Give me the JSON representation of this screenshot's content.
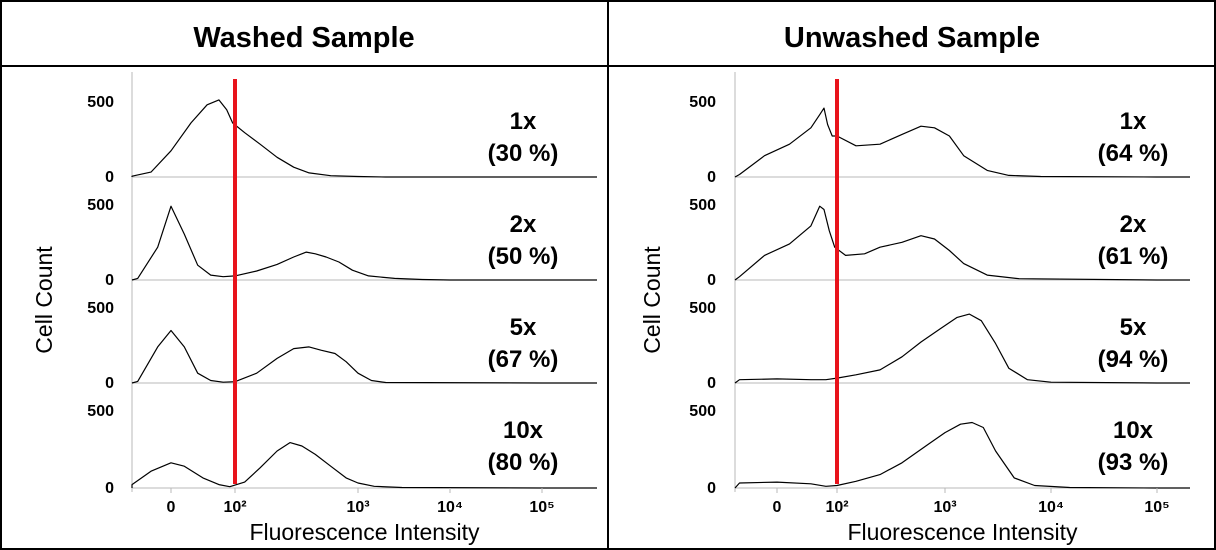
{
  "figure": {
    "colors": {
      "gate_line": "#e8131b",
      "curve": "#000000",
      "axis": "#b8b8b8",
      "border": "#000000"
    }
  },
  "chart_data": [
    {
      "type": "area",
      "title": "Washed Sample",
      "xlabel": "Fluorescence Intensity",
      "ylabel": "Cell Count",
      "x_scale": "biexponential",
      "x_ticks": [
        "0",
        "10²",
        "10³",
        "10⁴",
        "10⁵"
      ],
      "y_ticks": [
        "0",
        "500"
      ],
      "ylim": [
        0,
        500
      ],
      "gate": 100,
      "gate_label": "10²",
      "panels": [
        {
          "label": "1x",
          "percent": "(30 %)",
          "points": [
            [
              -60,
              0
            ],
            [
              -30,
              5
            ],
            [
              -15,
              30
            ],
            [
              0,
              160
            ],
            [
              15,
              330
            ],
            [
              30,
              440
            ],
            [
              50,
              470
            ],
            [
              70,
              410
            ],
            [
              90,
              330
            ],
            [
              120,
              270
            ],
            [
              160,
              200
            ],
            [
              220,
              120
            ],
            [
              300,
              60
            ],
            [
              400,
              25
            ],
            [
              600,
              8
            ],
            [
              1000,
              3
            ],
            [
              2000,
              0
            ],
            [
              100000,
              0
            ]
          ]
        },
        {
          "label": "2x",
          "percent": "(50 %)",
          "points": [
            [
              -60,
              0
            ],
            [
              -25,
              10
            ],
            [
              -10,
              200
            ],
            [
              0,
              450
            ],
            [
              10,
              280
            ],
            [
              20,
              90
            ],
            [
              35,
              30
            ],
            [
              60,
              20
            ],
            [
              100,
              25
            ],
            [
              150,
              55
            ],
            [
              220,
              95
            ],
            [
              300,
              140
            ],
            [
              380,
              170
            ],
            [
              450,
              160
            ],
            [
              550,
              140
            ],
            [
              700,
              110
            ],
            [
              900,
              60
            ],
            [
              1300,
              25
            ],
            [
              2500,
              10
            ],
            [
              5000,
              3
            ],
            [
              10000,
              0
            ],
            [
              100000,
              0
            ]
          ]
        },
        {
          "label": "5x",
          "percent": "(67 %)",
          "points": [
            [
              -60,
              0
            ],
            [
              -25,
              10
            ],
            [
              -10,
              220
            ],
            [
              0,
              320
            ],
            [
              10,
              220
            ],
            [
              20,
              60
            ],
            [
              35,
              15
            ],
            [
              60,
              5
            ],
            [
              100,
              8
            ],
            [
              150,
              60
            ],
            [
              220,
              150
            ],
            [
              300,
              210
            ],
            [
              400,
              220
            ],
            [
              500,
              200
            ],
            [
              650,
              180
            ],
            [
              800,
              130
            ],
            [
              1000,
              60
            ],
            [
              1400,
              15
            ],
            [
              2000,
              3
            ],
            [
              100000,
              0
            ]
          ]
        },
        {
          "label": "10x",
          "percent": "(80 %)",
          "points": [
            [
              -60,
              0
            ],
            [
              -30,
              20
            ],
            [
              -15,
              100
            ],
            [
              0,
              150
            ],
            [
              10,
              130
            ],
            [
              25,
              60
            ],
            [
              50,
              20
            ],
            [
              80,
              8
            ],
            [
              120,
              35
            ],
            [
              160,
              120
            ],
            [
              220,
              220
            ],
            [
              280,
              270
            ],
            [
              350,
              250
            ],
            [
              450,
              200
            ],
            [
              600,
              130
            ],
            [
              800,
              60
            ],
            [
              1000,
              30
            ],
            [
              1500,
              10
            ],
            [
              3000,
              3
            ],
            [
              100000,
              0
            ]
          ]
        }
      ]
    },
    {
      "type": "area",
      "title": "Unwashed Sample",
      "xlabel": "Fluorescence Intensity",
      "ylabel": "Cell Count",
      "x_scale": "biexponential",
      "x_ticks": [
        "0",
        "10²",
        "10³",
        "10⁴",
        "10⁵"
      ],
      "y_ticks": [
        "0",
        "500"
      ],
      "ylim": [
        0,
        500
      ],
      "gate": 100,
      "gate_label": "10²",
      "panels": [
        {
          "label": "1x",
          "percent": "(64 %)",
          "points": [
            [
              -60,
              0
            ],
            [
              -30,
              15
            ],
            [
              -10,
              130
            ],
            [
              10,
              200
            ],
            [
              30,
              300
            ],
            [
              45,
              380
            ],
            [
              55,
              420
            ],
            [
              65,
              320
            ],
            [
              80,
              250
            ],
            [
              100,
              250
            ],
            [
              150,
              190
            ],
            [
              250,
              200
            ],
            [
              400,
              260
            ],
            [
              600,
              310
            ],
            [
              800,
              300
            ],
            [
              1100,
              250
            ],
            [
              1500,
              130
            ],
            [
              2500,
              40
            ],
            [
              4000,
              10
            ],
            [
              8000,
              3
            ],
            [
              100000,
              0
            ]
          ]
        },
        {
          "label": "2x",
          "percent": "(61 %)",
          "points": [
            [
              -60,
              0
            ],
            [
              -30,
              20
            ],
            [
              -10,
              150
            ],
            [
              10,
              220
            ],
            [
              30,
              330
            ],
            [
              45,
              450
            ],
            [
              55,
              430
            ],
            [
              70,
              300
            ],
            [
              90,
              200
            ],
            [
              120,
              150
            ],
            [
              180,
              160
            ],
            [
              250,
              200
            ],
            [
              400,
              230
            ],
            [
              600,
              270
            ],
            [
              800,
              250
            ],
            [
              1100,
              180
            ],
            [
              1500,
              100
            ],
            [
              2500,
              30
            ],
            [
              5000,
              8
            ],
            [
              100000,
              0
            ]
          ]
        },
        {
          "label": "5x",
          "percent": "(94 %)",
          "points": [
            [
              -60,
              0
            ],
            [
              -30,
              20
            ],
            [
              0,
              25
            ],
            [
              30,
              20
            ],
            [
              60,
              20
            ],
            [
              100,
              30
            ],
            [
              150,
              50
            ],
            [
              250,
              80
            ],
            [
              400,
              160
            ],
            [
              600,
              250
            ],
            [
              900,
              330
            ],
            [
              1300,
              400
            ],
            [
              1700,
              420
            ],
            [
              2200,
              380
            ],
            [
              3000,
              240
            ],
            [
              4000,
              90
            ],
            [
              6000,
              20
            ],
            [
              10000,
              5
            ],
            [
              100000,
              0
            ]
          ]
        },
        {
          "label": "10x",
          "percent": "(93 %)",
          "points": [
            [
              -60,
              0
            ],
            [
              -30,
              30
            ],
            [
              0,
              35
            ],
            [
              30,
              25
            ],
            [
              60,
              10
            ],
            [
              100,
              15
            ],
            [
              150,
              40
            ],
            [
              250,
              80
            ],
            [
              400,
              150
            ],
            [
              700,
              260
            ],
            [
              1000,
              330
            ],
            [
              1400,
              380
            ],
            [
              1800,
              390
            ],
            [
              2300,
              360
            ],
            [
              3000,
              220
            ],
            [
              4500,
              60
            ],
            [
              7000,
              15
            ],
            [
              15000,
              3
            ],
            [
              100000,
              0
            ]
          ]
        }
      ]
    }
  ]
}
